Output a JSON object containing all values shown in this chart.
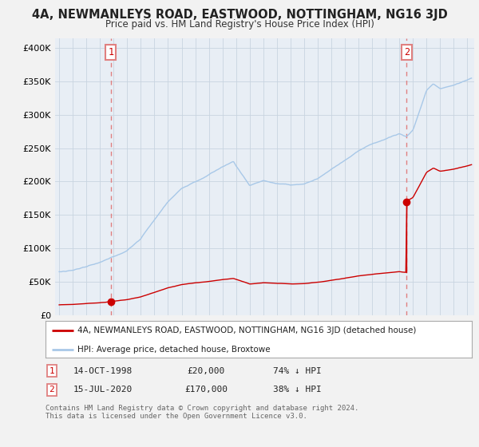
{
  "title": "4A, NEWMANLEYS ROAD, EASTWOOD, NOTTINGHAM, NG16 3JD",
  "subtitle": "Price paid vs. HM Land Registry's House Price Index (HPI)",
  "ylabel_ticks": [
    "£0",
    "£50K",
    "£100K",
    "£150K",
    "£200K",
    "£250K",
    "£300K",
    "£350K",
    "£400K"
  ],
  "ytick_values": [
    0,
    50000,
    100000,
    150000,
    200000,
    250000,
    300000,
    350000,
    400000
  ],
  "ylim": [
    0,
    415000
  ],
  "xlim_start": 1994.7,
  "xlim_end": 2025.5,
  "sale1_date": 1998.79,
  "sale1_price": 20000,
  "sale1_label": "1",
  "sale2_date": 2020.54,
  "sale2_price": 170000,
  "sale2_label": "2",
  "hpi_color": "#a8c8e8",
  "sold_color": "#cc0000",
  "vline_color": "#e08080",
  "background_color": "#f2f2f2",
  "plot_bg_color": "#e8eef5",
  "legend_label_red": "4A, NEWMANLEYS ROAD, EASTWOOD, NOTTINGHAM, NG16 3JD (detached house)",
  "legend_label_blue": "HPI: Average price, detached house, Broxtowe",
  "table_row1": [
    "1",
    "14-OCT-1998",
    "£20,000",
    "74% ↓ HPI"
  ],
  "table_row2": [
    "2",
    "15-JUL-2020",
    "£170,000",
    "38% ↓ HPI"
  ],
  "footnote": "Contains HM Land Registry data © Crown copyright and database right 2024.\nThis data is licensed under the Open Government Licence v3.0."
}
